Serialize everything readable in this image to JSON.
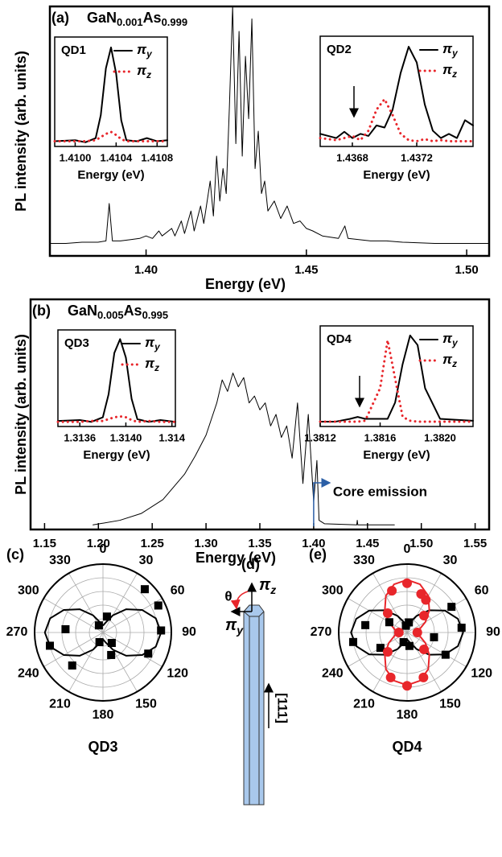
{
  "chart_data": [
    {
      "type": "line",
      "label": "(a)",
      "sample": [
        "GaN",
        "0.001",
        "As",
        "0.999"
      ],
      "xlabel": "Energy (eV)",
      "ylabel": "PL intensity (arb. units)",
      "xlim": [
        1.37,
        1.507
      ],
      "ylim": [
        0,
        100
      ],
      "xticks": [
        {
          "value": 1.4,
          "label": "1.40"
        },
        1.45,
        {
          "value": 1.5,
          "label": "1.50"
        }
      ],
      "x": [
        1.37,
        1.375,
        1.38,
        1.385,
        1.3875,
        1.3885,
        1.3895,
        1.392,
        1.395,
        1.398,
        1.4,
        1.402,
        1.404,
        1.405,
        1.408,
        1.409,
        1.411,
        1.412,
        1.414,
        1.415,
        1.417,
        1.418,
        1.42,
        1.421,
        1.422,
        1.423,
        1.424,
        1.425,
        1.426,
        1.427,
        1.428,
        1.429,
        1.43,
        1.431,
        1.432,
        1.433,
        1.434,
        1.435,
        1.436,
        1.437,
        1.438,
        1.44,
        1.442,
        1.444,
        1.446,
        1.448,
        1.45,
        1.452,
        1.455,
        1.46,
        1.462,
        1.463,
        1.47,
        1.475,
        1.48,
        1.49,
        1.5,
        1.507
      ],
      "series": [
        {
          "color": "#000000",
          "linestyle": "solid",
          "values": [
            5,
            5,
            5.5,
            5.5,
            6,
            21,
            6,
            6,
            6.5,
            7,
            8,
            7,
            10,
            8,
            11,
            8,
            14,
            9,
            18,
            10,
            20,
            13,
            30,
            16,
            40,
            22,
            35,
            25,
            60,
            100,
            45,
            90,
            40,
            80,
            55,
            95,
            35,
            50,
            25,
            30,
            18,
            22,
            15,
            20,
            13,
            14,
            11,
            10,
            8,
            7,
            12,
            7,
            6,
            6,
            5.5,
            5,
            5,
            5
          ]
        }
      ]
    },
    {
      "type": "line",
      "title": "QD1",
      "xlabel": "Energy (eV)",
      "xlim": [
        1.4098,
        1.4109
      ],
      "ylim": [
        0,
        105
      ],
      "xticks": [
        {
          "value": 1.41,
          "label": "1.4100"
        },
        1.4104,
        1.4108
      ],
      "x": [
        1.4098,
        1.41,
        1.4101,
        1.4102,
        1.41025,
        1.4103,
        1.41035,
        1.4104,
        1.41045,
        1.4105,
        1.4106,
        1.4107,
        1.4108,
        1.4109
      ],
      "series": [
        {
          "name": "πy",
          "color": "#000000",
          "linestyle": "solid",
          "values": [
            5,
            6,
            4,
            8,
            30,
            75,
            95,
            70,
            25,
            6,
            5,
            8,
            5,
            6
          ]
        },
        {
          "name": "πz",
          "color": "#e8262b",
          "linestyle": "dotted",
          "values": [
            5,
            5,
            5,
            6,
            9,
            12,
            14,
            11,
            7,
            5,
            5,
            5,
            5,
            5
          ]
        }
      ]
    },
    {
      "type": "line",
      "title": "QD2",
      "xlabel": "Energy (eV)",
      "xlim": [
        1.4366,
        1.43755
      ],
      "ylim": [
        0,
        105
      ],
      "xticks": [
        1.4368,
        1.4372
      ],
      "x": [
        1.4366,
        1.4367,
        1.43675,
        1.4368,
        1.43685,
        1.4369,
        1.43695,
        1.437,
        1.43705,
        1.4371,
        1.43715,
        1.4372,
        1.43725,
        1.4373,
        1.43735,
        1.4374,
        1.43745,
        1.4375,
        1.43755
      ],
      "series": [
        {
          "name": "πy",
          "color": "#000000",
          "linestyle": "solid",
          "values": [
            12,
            8,
            14,
            8,
            12,
            10,
            20,
            18,
            35,
            70,
            95,
            80,
            40,
            15,
            8,
            12,
            8,
            25,
            20
          ]
        },
        {
          "name": "πz",
          "color": "#e8262b",
          "linestyle": "dotted",
          "values": [
            8,
            6,
            8,
            10,
            6,
            15,
            35,
            45,
            30,
            12,
            6,
            5,
            7,
            5,
            6,
            5,
            5,
            5,
            5
          ]
        }
      ]
    },
    {
      "type": "line",
      "label": "(b)",
      "sample": [
        "GaN",
        "0.005",
        "As",
        "0.995"
      ],
      "xlabel": "Energy (eV)",
      "ylabel": "PL intensity (arb. units)",
      "annotation": "Core emission",
      "annotation_color": "#2b5fa6",
      "xlim": [
        1.137,
        1.563
      ],
      "ylim": [
        0,
        100
      ],
      "xticks": [
        1.15,
        {
          "value": 1.2,
          "label": "1.20"
        },
        1.25,
        {
          "value": 1.3,
          "label": "1.30"
        },
        1.35,
        {
          "value": 1.4,
          "label": "1.40"
        },
        1.45,
        {
          "value": 1.5,
          "label": "1.50"
        },
        1.55
      ],
      "x": [
        1.195,
        1.22,
        1.24,
        1.26,
        1.28,
        1.29,
        1.3,
        1.31,
        1.315,
        1.32,
        1.325,
        1.33,
        1.335,
        1.34,
        1.345,
        1.35,
        1.355,
        1.36,
        1.365,
        1.37,
        1.375,
        1.38,
        1.385,
        1.39,
        1.395,
        1.4,
        1.403,
        1.405,
        1.41,
        1.44,
        1.4405,
        1.441,
        1.475
      ],
      "series": [
        {
          "color": "#000000",
          "linestyle": "solid",
          "values": [
            2,
            4,
            7,
            13,
            24,
            32,
            41,
            55,
            65,
            60,
            68,
            62,
            66,
            55,
            58,
            52,
            55,
            45,
            50,
            40,
            45,
            31,
            55,
            20,
            50,
            12,
            30,
            4,
            2.5,
            2,
            4,
            2,
            2
          ]
        }
      ]
    },
    {
      "type": "line",
      "title": "QD3",
      "xlabel": "Energy (eV)",
      "xlim": [
        1.31341,
        1.31443
      ],
      "ylim": [
        0,
        105
      ],
      "xticks": [
        1.3136,
        {
          "value": 1.314,
          "label": "1.3140"
        },
        {
          "value": 1.3144,
          "label": "1.314"
        }
      ],
      "x": [
        1.31341,
        1.3136,
        1.3137,
        1.3138,
        1.31385,
        1.3139,
        1.31395,
        1.314,
        1.31405,
        1.3141,
        1.3142,
        1.3143,
        1.31443
      ],
      "series": [
        {
          "name": "πy",
          "color": "#000000",
          "linestyle": "solid",
          "values": [
            6,
            7,
            5,
            10,
            35,
            80,
            95,
            75,
            30,
            8,
            5,
            7,
            5
          ]
        },
        {
          "name": "πz",
          "color": "#e8262b",
          "linestyle": "dotted",
          "values": [
            5,
            5,
            6,
            6,
            8,
            10,
            11,
            10,
            7,
            5,
            6,
            5,
            5
          ]
        }
      ]
    },
    {
      "type": "line",
      "title": "QD4",
      "xlabel": "Energy (eV)",
      "xlim": [
        1.3812,
        1.38222
      ],
      "ylim": [
        0,
        105
      ],
      "xticks": [
        1.3812,
        1.3816,
        {
          "value": 1.382,
          "label": "1.3820"
        }
      ],
      "x": [
        1.3812,
        1.3813,
        1.3814,
        1.38145,
        1.3815,
        1.3816,
        1.38165,
        1.3817,
        1.38175,
        1.3818,
        1.38185,
        1.3819,
        1.382,
        1.3821,
        1.38222
      ],
      "series": [
        {
          "name": "πy",
          "color": "#000000",
          "linestyle": "solid",
          "values": [
            5,
            5,
            8,
            10,
            8,
            8,
            8,
            25,
            65,
            95,
            85,
            40,
            8,
            7,
            6
          ]
        },
        {
          "name": "πz",
          "color": "#e8262b",
          "linestyle": "dotted",
          "values": [
            5,
            5,
            5,
            5,
            6,
            40,
            90,
            50,
            10,
            6,
            5,
            5,
            5,
            5,
            5
          ]
        }
      ]
    },
    {
      "type": "polar",
      "label": "(c)",
      "title": "QD3",
      "rlim": [
        0,
        1
      ],
      "rticks": [
        0.2,
        0.4,
        0.6,
        0.8,
        1
      ],
      "grid": true,
      "thetaticks": [
        0,
        30,
        60,
        90,
        120,
        150,
        180,
        210,
        240,
        270,
        300,
        330
      ],
      "series": [
        {
          "color": "#000000",
          "linestyle": "solid",
          "theta": [
            0,
            15,
            30,
            45,
            60,
            75,
            90,
            105,
            120,
            135,
            150,
            165,
            180,
            195,
            210,
            225,
            240,
            255,
            270,
            285,
            300,
            315,
            330,
            345,
            360
          ],
          "r": [
            0.1,
            0.15,
            0.29,
            0.48,
            0.66,
            0.8,
            0.85,
            0.8,
            0.66,
            0.48,
            0.29,
            0.15,
            0.1,
            0.15,
            0.29,
            0.48,
            0.66,
            0.8,
            0.85,
            0.8,
            0.66,
            0.48,
            0.29,
            0.15,
            0.1
          ]
        },
        {
          "color": "#000000",
          "marker": "square",
          "theta": [
            44,
            64,
            88,
            115,
            14,
            140,
            200,
            223,
            256,
            275,
            160,
            330
          ],
          "r": [
            0.88,
            0.9,
            0.85,
            0.73,
            0.24,
            0.2,
            0.15,
            0.66,
            0.8,
            0.55,
            0.35,
            0.12
          ]
        }
      ]
    },
    {
      "type": "polar",
      "label": "(e)",
      "title": "QD4",
      "rlim": [
        0,
        1
      ],
      "rticks": [
        0.2,
        0.4,
        0.6,
        0.8,
        1
      ],
      "grid": true,
      "thetaticks": [
        0,
        30,
        60,
        90,
        120,
        150,
        180,
        210,
        240,
        270,
        300,
        330
      ],
      "series": [
        {
          "color": "#000000",
          "linestyle": "solid",
          "theta": [
            0,
            15,
            30,
            45,
            60,
            75,
            90,
            105,
            120,
            135,
            150,
            165,
            180,
            195,
            210,
            225,
            240,
            255,
            270,
            285,
            300,
            315,
            330,
            345,
            360
          ],
          "r": [
            0.1,
            0.15,
            0.28,
            0.46,
            0.64,
            0.77,
            0.82,
            0.77,
            0.64,
            0.46,
            0.28,
            0.15,
            0.1,
            0.15,
            0.28,
            0.46,
            0.64,
            0.77,
            0.82,
            0.77,
            0.64,
            0.46,
            0.28,
            0.15,
            0.1
          ]
        },
        {
          "color": "#e8262b",
          "linestyle": "solid",
          "theta": [
            0,
            15,
            30,
            45,
            60,
            75,
            90,
            105,
            120,
            135,
            150,
            165,
            180,
            195,
            210,
            225,
            240,
            255,
            270,
            285,
            300,
            315,
            330,
            345,
            360
          ],
          "r": [
            0.77,
            0.73,
            0.62,
            0.46,
            0.31,
            0.19,
            0.15,
            0.19,
            0.31,
            0.46,
            0.62,
            0.73,
            0.77,
            0.73,
            0.62,
            0.46,
            0.31,
            0.19,
            0.15,
            0.19,
            0.31,
            0.46,
            0.62,
            0.73,
            0.77
          ]
        },
        {
          "color": "#000000",
          "marker": "square",
          "theta": [
            60,
            85,
            120,
            260,
            280,
            300,
            10,
            350,
            170,
            200,
            100,
            240
          ],
          "r": [
            0.75,
            0.8,
            0.65,
            0.8,
            0.62,
            0.3,
            0.15,
            0.1,
            0.2,
            0.15,
            0.4,
            0.45
          ]
        },
        {
          "color": "#e8262b",
          "marker": "circle",
          "theta": [
            0,
            20,
            340,
            45,
            315,
            180,
            160,
            200,
            135,
            225,
            90,
            270,
            30
          ],
          "r": [
            0.72,
            0.6,
            0.65,
            0.35,
            0.4,
            0.78,
            0.7,
            0.7,
            0.35,
            0.4,
            0.15,
            0.12,
            0.55
          ]
        }
      ]
    }
  ],
  "diagram": {
    "label": "(d)",
    "angle": "θ",
    "pi_z": "πz",
    "pi_y": "πy",
    "direction": "[111]"
  }
}
